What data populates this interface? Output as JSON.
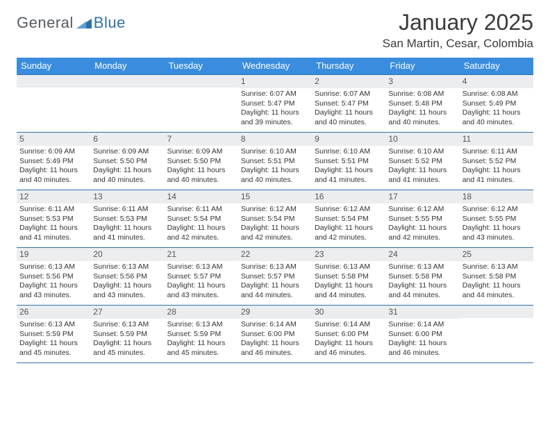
{
  "branding": {
    "logo_text_1": "General",
    "logo_text_2": "Blue",
    "logo_text_1_color": "#555a60",
    "logo_text_2_color": "#2f6fa8",
    "logo_shape_color": "#2f6fa8"
  },
  "header": {
    "month_title": "January 2025",
    "location": "San Martin, Cesar, Colombia",
    "title_fontsize": 32,
    "location_fontsize": 17,
    "title_color": "#3a3a3a"
  },
  "calendar": {
    "type": "table",
    "header_bg": "#3a8dde",
    "header_fg": "#ffffff",
    "row_border_color": "#2f6fa8",
    "daynum_bg": "#ebedef",
    "cell_font_size": 10.5,
    "days_of_week": [
      "Sunday",
      "Monday",
      "Tuesday",
      "Wednesday",
      "Thursday",
      "Friday",
      "Saturday"
    ],
    "weeks": [
      [
        {
          "n": "",
          "l": []
        },
        {
          "n": "",
          "l": []
        },
        {
          "n": "",
          "l": []
        },
        {
          "n": "1",
          "l": [
            "Sunrise: 6:07 AM",
            "Sunset: 5:47 PM",
            "Daylight: 11 hours and 39 minutes."
          ]
        },
        {
          "n": "2",
          "l": [
            "Sunrise: 6:07 AM",
            "Sunset: 5:47 PM",
            "Daylight: 11 hours and 40 minutes."
          ]
        },
        {
          "n": "3",
          "l": [
            "Sunrise: 6:08 AM",
            "Sunset: 5:48 PM",
            "Daylight: 11 hours and 40 minutes."
          ]
        },
        {
          "n": "4",
          "l": [
            "Sunrise: 6:08 AM",
            "Sunset: 5:49 PM",
            "Daylight: 11 hours and 40 minutes."
          ]
        }
      ],
      [
        {
          "n": "5",
          "l": [
            "Sunrise: 6:09 AM",
            "Sunset: 5:49 PM",
            "Daylight: 11 hours and 40 minutes."
          ]
        },
        {
          "n": "6",
          "l": [
            "Sunrise: 6:09 AM",
            "Sunset: 5:50 PM",
            "Daylight: 11 hours and 40 minutes."
          ]
        },
        {
          "n": "7",
          "l": [
            "Sunrise: 6:09 AM",
            "Sunset: 5:50 PM",
            "Daylight: 11 hours and 40 minutes."
          ]
        },
        {
          "n": "8",
          "l": [
            "Sunrise: 6:10 AM",
            "Sunset: 5:51 PM",
            "Daylight: 11 hours and 40 minutes."
          ]
        },
        {
          "n": "9",
          "l": [
            "Sunrise: 6:10 AM",
            "Sunset: 5:51 PM",
            "Daylight: 11 hours and 41 minutes."
          ]
        },
        {
          "n": "10",
          "l": [
            "Sunrise: 6:10 AM",
            "Sunset: 5:52 PM",
            "Daylight: 11 hours and 41 minutes."
          ]
        },
        {
          "n": "11",
          "l": [
            "Sunrise: 6:11 AM",
            "Sunset: 5:52 PM",
            "Daylight: 11 hours and 41 minutes."
          ]
        }
      ],
      [
        {
          "n": "12",
          "l": [
            "Sunrise: 6:11 AM",
            "Sunset: 5:53 PM",
            "Daylight: 11 hours and 41 minutes."
          ]
        },
        {
          "n": "13",
          "l": [
            "Sunrise: 6:11 AM",
            "Sunset: 5:53 PM",
            "Daylight: 11 hours and 41 minutes."
          ]
        },
        {
          "n": "14",
          "l": [
            "Sunrise: 6:11 AM",
            "Sunset: 5:54 PM",
            "Daylight: 11 hours and 42 minutes."
          ]
        },
        {
          "n": "15",
          "l": [
            "Sunrise: 6:12 AM",
            "Sunset: 5:54 PM",
            "Daylight: 11 hours and 42 minutes."
          ]
        },
        {
          "n": "16",
          "l": [
            "Sunrise: 6:12 AM",
            "Sunset: 5:54 PM",
            "Daylight: 11 hours and 42 minutes."
          ]
        },
        {
          "n": "17",
          "l": [
            "Sunrise: 6:12 AM",
            "Sunset: 5:55 PM",
            "Daylight: 11 hours and 42 minutes."
          ]
        },
        {
          "n": "18",
          "l": [
            "Sunrise: 6:12 AM",
            "Sunset: 5:55 PM",
            "Daylight: 11 hours and 43 minutes."
          ]
        }
      ],
      [
        {
          "n": "19",
          "l": [
            "Sunrise: 6:13 AM",
            "Sunset: 5:56 PM",
            "Daylight: 11 hours and 43 minutes."
          ]
        },
        {
          "n": "20",
          "l": [
            "Sunrise: 6:13 AM",
            "Sunset: 5:56 PM",
            "Daylight: 11 hours and 43 minutes."
          ]
        },
        {
          "n": "21",
          "l": [
            "Sunrise: 6:13 AM",
            "Sunset: 5:57 PM",
            "Daylight: 11 hours and 43 minutes."
          ]
        },
        {
          "n": "22",
          "l": [
            "Sunrise: 6:13 AM",
            "Sunset: 5:57 PM",
            "Daylight: 11 hours and 44 minutes."
          ]
        },
        {
          "n": "23",
          "l": [
            "Sunrise: 6:13 AM",
            "Sunset: 5:58 PM",
            "Daylight: 11 hours and 44 minutes."
          ]
        },
        {
          "n": "24",
          "l": [
            "Sunrise: 6:13 AM",
            "Sunset: 5:58 PM",
            "Daylight: 11 hours and 44 minutes."
          ]
        },
        {
          "n": "25",
          "l": [
            "Sunrise: 6:13 AM",
            "Sunset: 5:58 PM",
            "Daylight: 11 hours and 44 minutes."
          ]
        }
      ],
      [
        {
          "n": "26",
          "l": [
            "Sunrise: 6:13 AM",
            "Sunset: 5:59 PM",
            "Daylight: 11 hours and 45 minutes."
          ]
        },
        {
          "n": "27",
          "l": [
            "Sunrise: 6:13 AM",
            "Sunset: 5:59 PM",
            "Daylight: 11 hours and 45 minutes."
          ]
        },
        {
          "n": "28",
          "l": [
            "Sunrise: 6:13 AM",
            "Sunset: 5:59 PM",
            "Daylight: 11 hours and 45 minutes."
          ]
        },
        {
          "n": "29",
          "l": [
            "Sunrise: 6:14 AM",
            "Sunset: 6:00 PM",
            "Daylight: 11 hours and 46 minutes."
          ]
        },
        {
          "n": "30",
          "l": [
            "Sunrise: 6:14 AM",
            "Sunset: 6:00 PM",
            "Daylight: 11 hours and 46 minutes."
          ]
        },
        {
          "n": "31",
          "l": [
            "Sunrise: 6:14 AM",
            "Sunset: 6:00 PM",
            "Daylight: 11 hours and 46 minutes."
          ]
        },
        {
          "n": "",
          "l": []
        }
      ]
    ]
  }
}
